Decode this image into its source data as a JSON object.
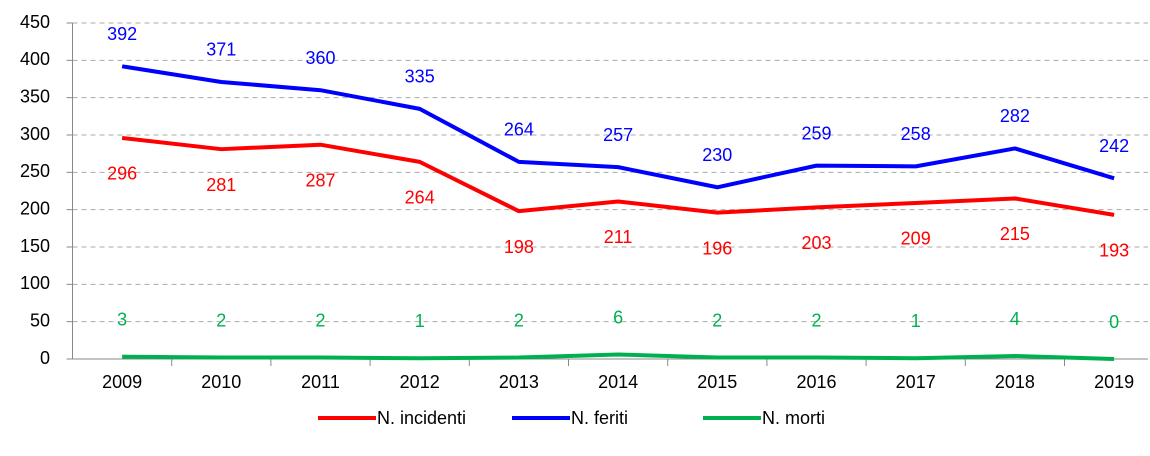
{
  "chart_data": {
    "type": "line",
    "categories": [
      "2009",
      "2010",
      "2011",
      "2012",
      "2013",
      "2014",
      "2015",
      "2016",
      "2017",
      "2018",
      "2019"
    ],
    "series": [
      {
        "name": "N. incidenti",
        "color": "#ff0000",
        "values": [
          296,
          281,
          287,
          264,
          198,
          211,
          196,
          203,
          209,
          215,
          193
        ]
      },
      {
        "name": "N. feriti",
        "color": "#0000ff",
        "values": [
          392,
          371,
          360,
          335,
          264,
          257,
          230,
          259,
          258,
          282,
          242
        ]
      },
      {
        "name": "N. morti",
        "color": "#00b050",
        "values": [
          3,
          2,
          2,
          1,
          2,
          6,
          2,
          2,
          1,
          4,
          0
        ]
      }
    ],
    "ylim": [
      0,
      450
    ],
    "yticks": [
      0,
      50,
      100,
      150,
      200,
      250,
      300,
      350,
      400,
      450
    ],
    "grid": true,
    "legend": "bottom"
  }
}
